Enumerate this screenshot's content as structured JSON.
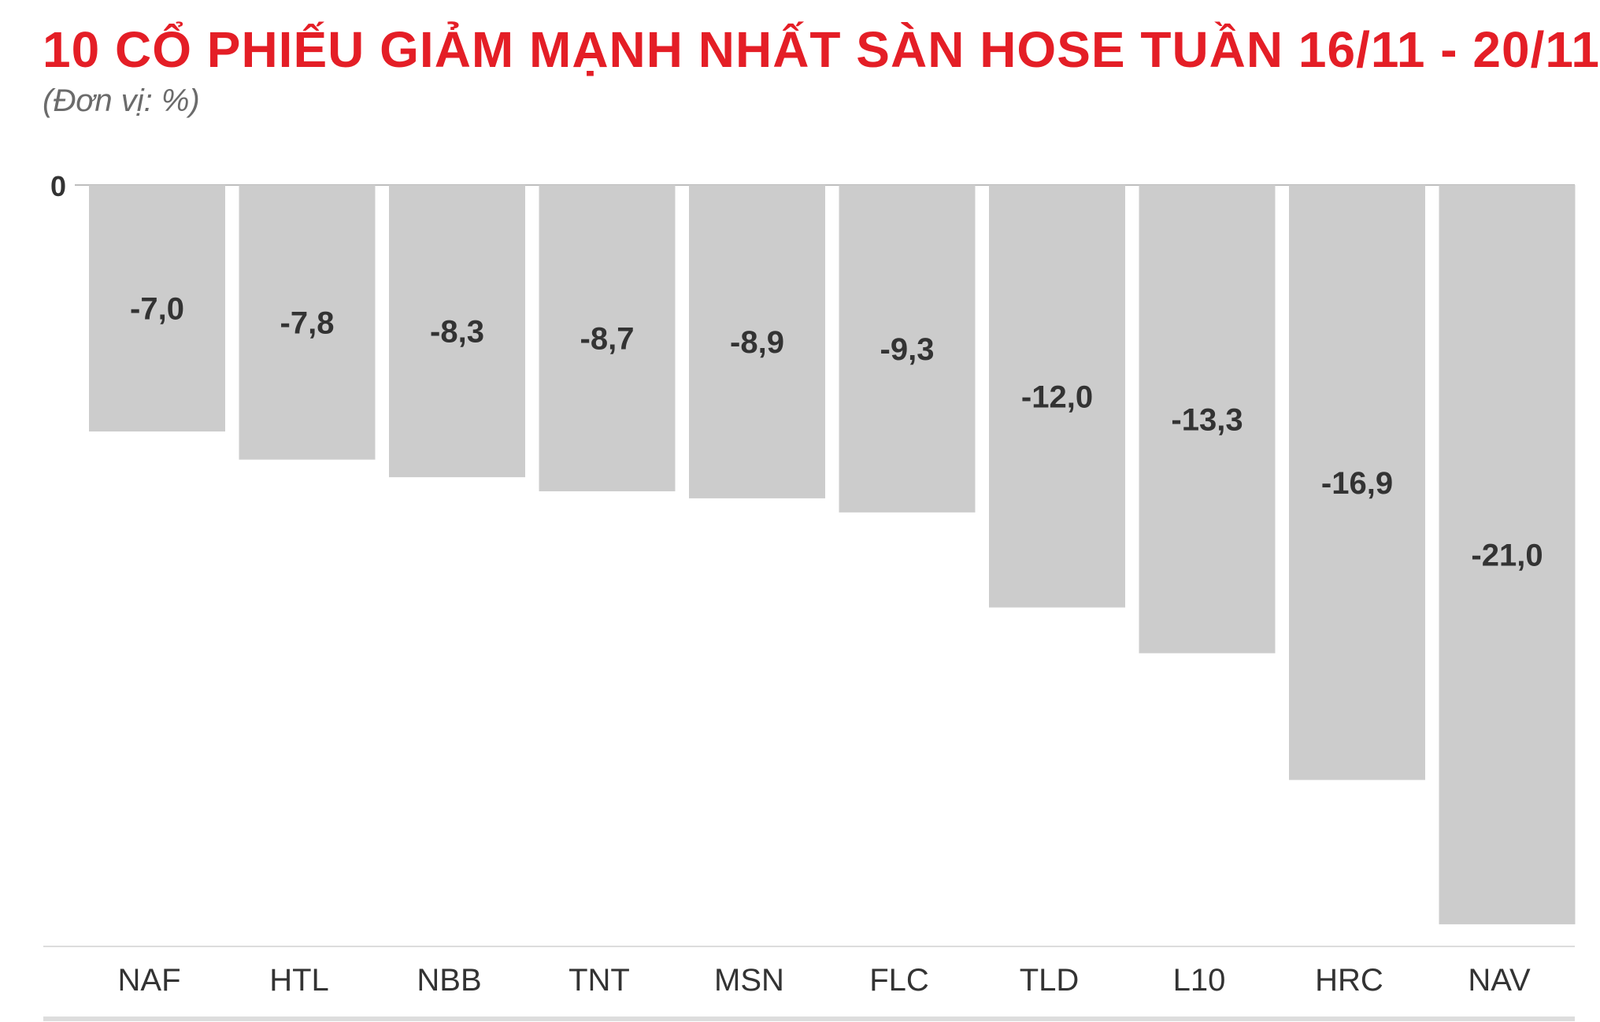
{
  "chart_data": {
    "type": "bar",
    "title": "10 CỔ PHIẾU GIẢM MẠNH NHẤT SÀN HOSE TUẦN 16/11 - 20/11",
    "subtitle": "(Đơn vị: %)",
    "categories": [
      "NAF",
      "HTL",
      "NBB",
      "TNT",
      "MSN",
      "FLC",
      "TLD",
      "L10",
      "HRC",
      "NAV"
    ],
    "values": [
      -7.0,
      -7.8,
      -8.3,
      -8.7,
      -8.9,
      -9.3,
      -12.0,
      -13.3,
      -16.9,
      -21.0
    ],
    "value_labels": [
      "-7,0",
      "-7,8",
      "-8,3",
      "-8,7",
      "-8,9",
      "-9,3",
      "-12,0",
      "-13,3",
      "-16,9",
      "-21,0"
    ],
    "ytick_labels": [
      "0"
    ],
    "ylim": [
      -21,
      0
    ],
    "xlabel": "",
    "ylabel": "",
    "grid": false,
    "legend": "none",
    "colors": {
      "title": "#e41e26",
      "bar": "#cccccc",
      "label": "#333333",
      "axis_text": "#333333",
      "baseline_rule": "#dddddd"
    }
  }
}
